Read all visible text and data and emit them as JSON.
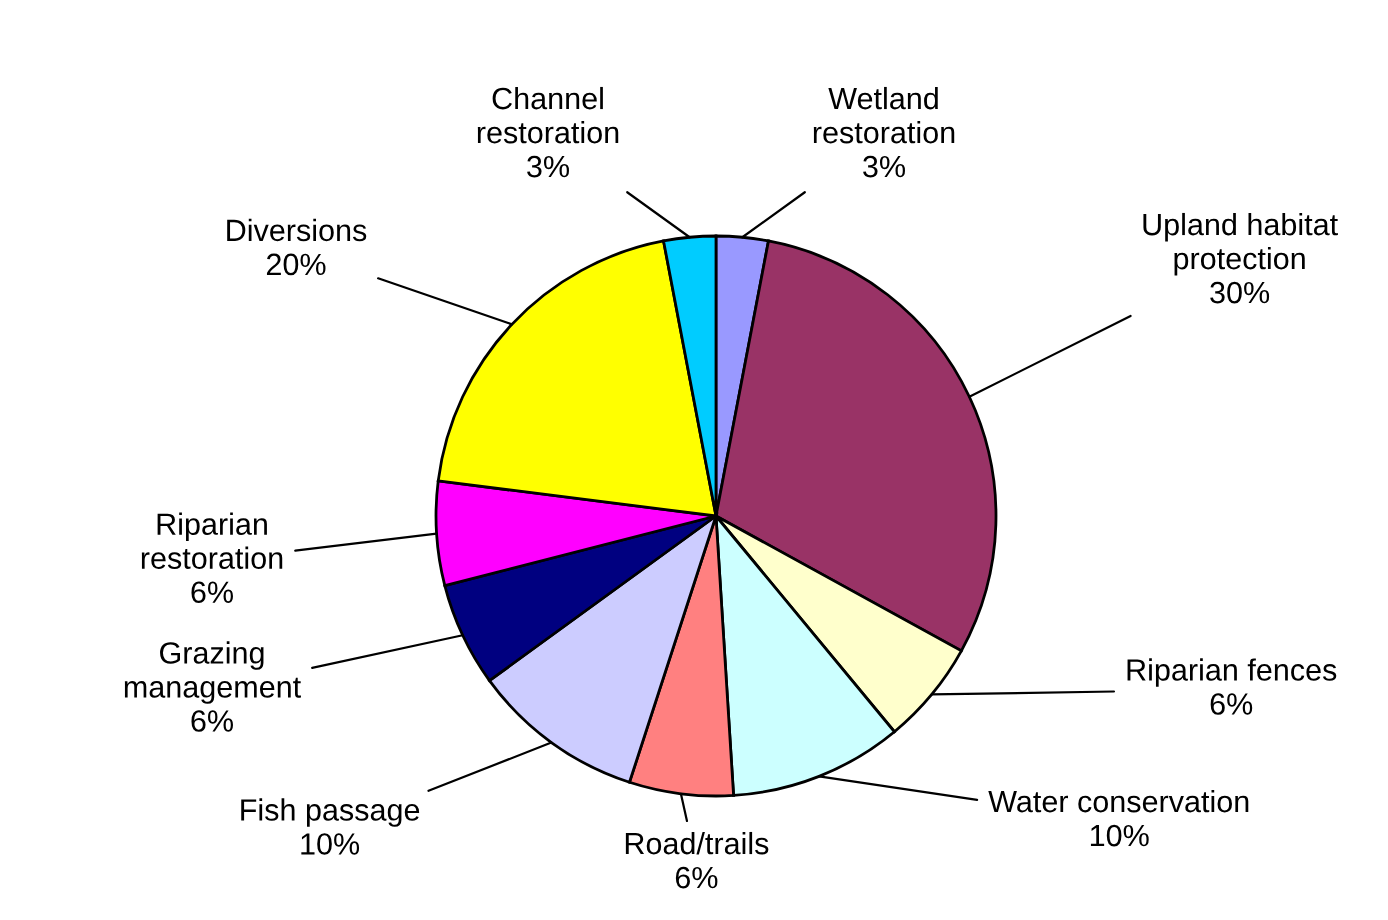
{
  "chart_data": {
    "type": "pie",
    "categories": [
      "Wetland restoration",
      "Upland habitat protection",
      "Riparian fences",
      "Water conservation",
      "Road/trails",
      "Fish passage",
      "Grazing management",
      "Riparian restoration",
      "Diversions",
      "Channel restoration"
    ],
    "values": [
      3,
      30,
      6,
      10,
      6,
      10,
      6,
      6,
      20,
      3
    ],
    "colors": [
      "#9999ff",
      "#993366",
      "#ffffcc",
      "#ccffff",
      "#ff8080",
      "#ccccff",
      "#000080",
      "#ff00ff",
      "#ffff00",
      "#00ccff"
    ],
    "value_labels": [
      "3%",
      "30%",
      "6%",
      "10%",
      "6%",
      "10%",
      "6%",
      "6%",
      "20%",
      "3%"
    ],
    "legend": false
  }
}
